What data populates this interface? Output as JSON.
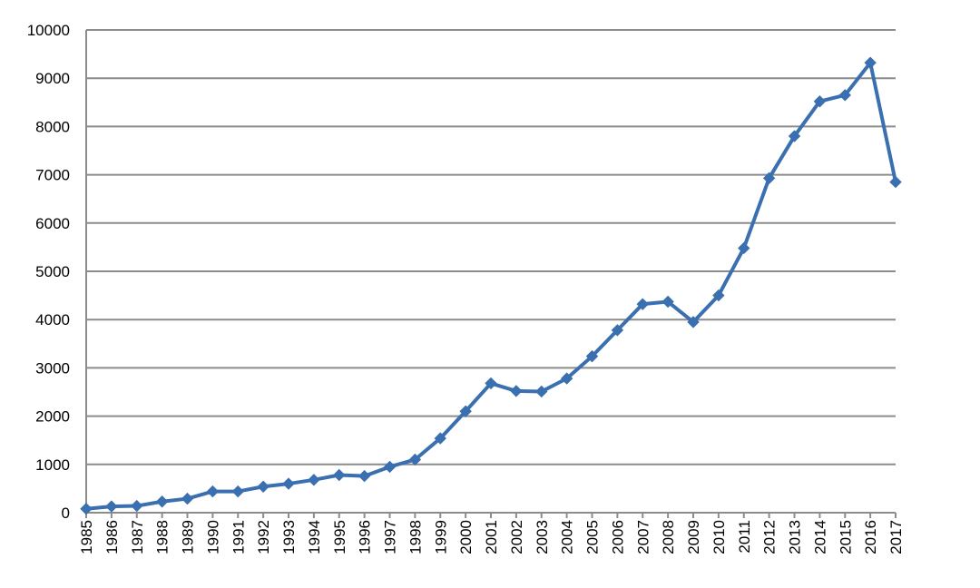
{
  "chart_data": {
    "type": "line",
    "title": "",
    "xlabel": "",
    "ylabel": "",
    "x": [
      "1985",
      "1986",
      "1987",
      "1988",
      "1989",
      "1990",
      "1991",
      "1992",
      "1993",
      "1994",
      "1995",
      "1996",
      "1997",
      "1998",
      "1999",
      "2000",
      "2001",
      "2002",
      "2003",
      "2004",
      "2005",
      "2006",
      "2007",
      "2008",
      "2009",
      "2010",
      "2011",
      "2012",
      "2013",
      "2014",
      "2015",
      "2016",
      "2017"
    ],
    "series": [
      {
        "name": "",
        "color": "#3a6fb0",
        "values": [
          80,
          130,
          140,
          230,
          290,
          440,
          440,
          540,
          600,
          680,
          780,
          760,
          950,
          1100,
          1540,
          2100,
          2680,
          2520,
          2510,
          2780,
          3240,
          3780,
          4320,
          4370,
          3950,
          4500,
          5480,
          6930,
          7800,
          8520,
          8650,
          9320,
          6850
        ]
      }
    ],
    "ylim": [
      0,
      10000
    ],
    "yticks": [
      0,
      1000,
      2000,
      3000,
      4000,
      5000,
      6000,
      7000,
      8000,
      9000,
      10000
    ],
    "grid": true,
    "legend": "none"
  }
}
